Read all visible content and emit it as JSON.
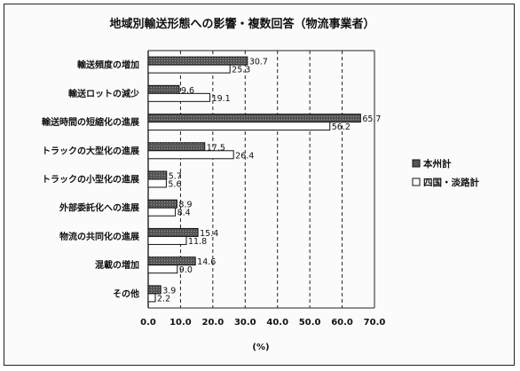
{
  "chart_data": {
    "type": "bar",
    "title": "地域別輸送形態への影響・複数回答（物流事業者）",
    "xlabel": "(%)",
    "ylabel": "",
    "xlim": [
      0,
      70
    ],
    "xticks": [
      "0.0",
      "10.0",
      "20.0",
      "30.0",
      "40.0",
      "50.0",
      "60.0",
      "70.0"
    ],
    "grid": true,
    "legend_position": "right",
    "categories": [
      "輸送頻度の増加",
      "輸送ロットの減少",
      "輸送時間の短縮化の進展",
      "トラックの大型化の進展",
      "トラックの小型化の進展",
      "外部委託化への進展",
      "物流の共同化の進展",
      "混載の増加",
      "その他"
    ],
    "series": [
      {
        "name": "本州計",
        "color": "#555555",
        "values": [
          30.7,
          9.6,
          65.7,
          17.5,
          5.7,
          8.9,
          15.4,
          14.6,
          3.9
        ]
      },
      {
        "name": "四国・淡路計",
        "color": "#ffffff",
        "values": [
          25.3,
          19.1,
          56.2,
          26.4,
          5.6,
          8.4,
          11.8,
          9.0,
          2.2
        ]
      }
    ]
  }
}
